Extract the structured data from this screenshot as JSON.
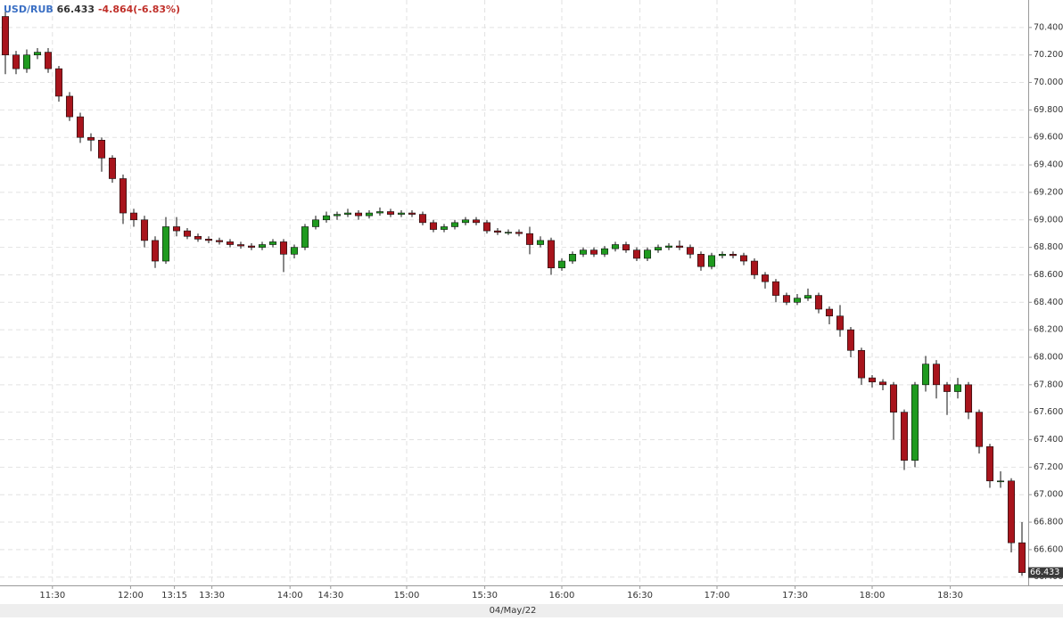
{
  "chart_data": {
    "type": "candlestick",
    "symbol": "USD/RUB",
    "last": "66.433",
    "change": "-4.864(-6.83%)",
    "date": "04/May/22",
    "up_color": "#1f9a1f",
    "down_color": "#a8141c",
    "grid": true,
    "ylim": [
      66.34,
      70.6
    ],
    "yticks": [
      {
        "value": 66.4,
        "label": "66.400"
      },
      {
        "value": 66.6,
        "label": "66.600"
      },
      {
        "value": 66.8,
        "label": "66.800"
      },
      {
        "value": 67.0,
        "label": "67.000"
      },
      {
        "value": 67.2,
        "label": "67.200"
      },
      {
        "value": 67.4,
        "label": "67.400"
      },
      {
        "value": 67.6,
        "label": "67.600"
      },
      {
        "value": 67.8,
        "label": "67.800"
      },
      {
        "value": 68.0,
        "label": "68.000"
      },
      {
        "value": 68.2,
        "label": "68.200"
      },
      {
        "value": 68.4,
        "label": "68.400"
      },
      {
        "value": 68.6,
        "label": "68.600"
      },
      {
        "value": 68.8,
        "label": "68.800"
      },
      {
        "value": 69.0,
        "label": "69.000"
      },
      {
        "value": 69.2,
        "label": "69.200"
      },
      {
        "value": 69.4,
        "label": "69.400"
      },
      {
        "value": 69.6,
        "label": "69.600"
      },
      {
        "value": 69.8,
        "label": "69.800"
      },
      {
        "value": 70.0,
        "label": "70.000"
      },
      {
        "value": 70.2,
        "label": "70.200"
      },
      {
        "value": 70.4,
        "label": "70.400"
      }
    ],
    "xlim": [
      -0.5,
      95.5
    ],
    "xticks": [
      {
        "value": 4.4,
        "label": "11:30"
      },
      {
        "value": 11.7,
        "label": "12:00"
      },
      {
        "value": 15.8,
        "label": "13:15"
      },
      {
        "value": 19.3,
        "label": "13:30"
      },
      {
        "value": 26.6,
        "label": "14:00"
      },
      {
        "value": 30.4,
        "label": "14:30"
      },
      {
        "value": 37.5,
        "label": "15:00"
      },
      {
        "value": 44.8,
        "label": "15:30"
      },
      {
        "value": 52.0,
        "label": "16:00"
      },
      {
        "value": 59.3,
        "label": "16:30"
      },
      {
        "value": 66.5,
        "label": "17:00"
      },
      {
        "value": 73.8,
        "label": "17:30"
      },
      {
        "value": 81.0,
        "label": "18:00"
      },
      {
        "value": 88.3,
        "label": "18:30"
      }
    ],
    "open": [
      70.48,
      70.2,
      70.1,
      70.2,
      70.22,
      70.1,
      69.9,
      69.75,
      69.6,
      69.58,
      69.45,
      69.3,
      69.05,
      69.0,
      68.85,
      68.7,
      68.95,
      68.92,
      68.88,
      68.86,
      68.85,
      68.84,
      68.82,
      68.81,
      68.8,
      68.82,
      68.84,
      68.75,
      68.8,
      68.95,
      69.0,
      69.03,
      69.04,
      69.05,
      69.03,
      69.05,
      69.06,
      69.04,
      69.05,
      69.04,
      68.98,
      68.93,
      68.95,
      68.98,
      69.0,
      68.98,
      68.92,
      68.91,
      68.91,
      68.9,
      68.82,
      68.85,
      68.65,
      68.7,
      68.75,
      68.78,
      68.75,
      68.79,
      68.82,
      68.78,
      68.72,
      68.78,
      68.8,
      68.81,
      68.8,
      68.75,
      68.66,
      68.74,
      68.75,
      68.74,
      68.7,
      68.6,
      68.55,
      68.45,
      68.4,
      68.43,
      68.45,
      68.35,
      68.3,
      68.2,
      68.05,
      67.85,
      67.82,
      67.8,
      67.6,
      67.25,
      67.8,
      67.95,
      67.8,
      67.75,
      67.8,
      67.6,
      67.35,
      67.1,
      67.1,
      66.65
    ],
    "high": [
      70.52,
      70.23,
      70.24,
      70.25,
      70.25,
      70.12,
      69.93,
      69.78,
      69.63,
      69.6,
      69.47,
      69.33,
      69.08,
      69.03,
      68.88,
      69.02,
      69.02,
      68.94,
      68.9,
      68.88,
      68.87,
      68.86,
      68.84,
      68.83,
      68.84,
      68.86,
      68.86,
      68.82,
      68.97,
      69.03,
      69.06,
      69.06,
      69.08,
      69.07,
      69.07,
      69.09,
      69.08,
      69.07,
      69.07,
      69.06,
      69.0,
      68.97,
      69.0,
      69.02,
      69.02,
      69.0,
      68.94,
      68.93,
      68.93,
      68.95,
      68.88,
      68.87,
      68.72,
      68.77,
      68.8,
      68.8,
      68.81,
      68.84,
      68.84,
      68.8,
      68.8,
      68.82,
      68.83,
      68.85,
      68.82,
      68.77,
      68.76,
      68.77,
      68.77,
      68.76,
      68.72,
      68.62,
      68.57,
      68.47,
      68.46,
      68.5,
      68.47,
      68.37,
      68.38,
      68.22,
      68.07,
      67.87,
      67.84,
      67.82,
      67.62,
      67.82,
      68.01,
      67.98,
      67.82,
      67.85,
      67.82,
      67.62,
      67.37,
      67.17,
      67.12,
      66.8
    ],
    "low": [
      70.06,
      70.06,
      70.07,
      70.17,
      70.07,
      69.86,
      69.72,
      69.56,
      69.5,
      69.35,
      69.27,
      68.97,
      68.95,
      68.8,
      68.65,
      68.68,
      68.88,
      68.86,
      68.84,
      68.83,
      68.82,
      68.8,
      68.79,
      68.78,
      68.78,
      68.8,
      68.62,
      68.72,
      68.78,
      68.93,
      68.98,
      69.0,
      69.02,
      69.0,
      69.01,
      69.03,
      69.02,
      69.02,
      69.02,
      68.96,
      68.91,
      68.91,
      68.93,
      68.96,
      68.96,
      68.9,
      68.89,
      68.89,
      68.88,
      68.75,
      68.8,
      68.6,
      68.63,
      68.68,
      68.73,
      68.73,
      68.73,
      68.77,
      68.76,
      68.7,
      68.7,
      68.76,
      68.78,
      68.78,
      68.72,
      68.63,
      68.64,
      68.72,
      68.72,
      68.67,
      68.57,
      68.5,
      68.4,
      68.38,
      68.38,
      68.41,
      68.32,
      68.24,
      68.15,
      68.0,
      67.8,
      67.78,
      67.76,
      67.4,
      67.18,
      67.2,
      67.75,
      67.7,
      67.58,
      67.7,
      67.55,
      67.3,
      67.05,
      67.05,
      66.58,
      66.41
    ],
    "close": [
      70.2,
      70.1,
      70.2,
      70.22,
      70.1,
      69.9,
      69.75,
      69.6,
      69.58,
      69.45,
      69.3,
      69.05,
      69.0,
      68.85,
      68.7,
      68.95,
      68.92,
      68.88,
      68.86,
      68.85,
      68.84,
      68.82,
      68.81,
      68.8,
      68.82,
      68.84,
      68.75,
      68.8,
      68.95,
      69.0,
      69.03,
      69.04,
      69.05,
      69.03,
      69.05,
      69.06,
      69.04,
      69.05,
      69.04,
      68.98,
      68.93,
      68.95,
      68.98,
      69.0,
      68.98,
      68.92,
      68.91,
      68.91,
      68.9,
      68.82,
      68.85,
      68.65,
      68.7,
      68.75,
      68.78,
      68.75,
      68.79,
      68.82,
      68.78,
      68.72,
      68.78,
      68.8,
      68.81,
      68.8,
      68.75,
      68.66,
      68.74,
      68.75,
      68.74,
      68.7,
      68.6,
      68.55,
      68.45,
      68.4,
      68.43,
      68.45,
      68.35,
      68.3,
      68.2,
      68.05,
      67.85,
      67.82,
      67.8,
      67.6,
      67.25,
      67.8,
      67.95,
      67.8,
      67.75,
      67.8,
      67.6,
      67.35,
      67.1,
      67.1,
      66.65,
      66.433
    ]
  }
}
